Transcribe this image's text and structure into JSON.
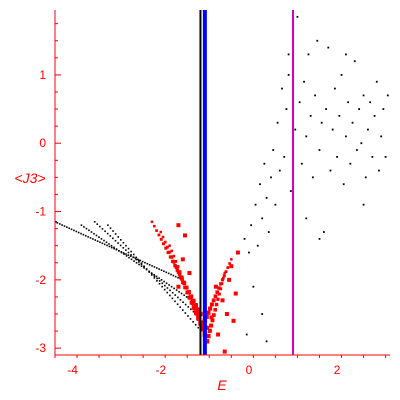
{
  "chart_data": {
    "type": "scatter",
    "title": "",
    "xlabel": "E",
    "ylabel": "<J3>",
    "xlim": [
      -4.4,
      3.2
    ],
    "ylim": [
      -3.1,
      1.95
    ],
    "x_ticks": [
      -4,
      -2,
      0,
      2
    ],
    "y_ticks": [
      1,
      0,
      -1,
      -2,
      -3
    ],
    "grid": false,
    "colors": {
      "axis": "#ff0000",
      "black_points": "#000000",
      "red_points": "#ff0000",
      "blue_line": "#0000ff",
      "magenta_line": "#cc00cc"
    },
    "vertical_lines": [
      {
        "x": -1.1,
        "color": "#000000",
        "width": "thin"
      },
      {
        "x": -1.0,
        "color": "#0000ff",
        "width": "thick"
      },
      {
        "x": 1.0,
        "color": "#cc00cc",
        "width": "thin"
      }
    ],
    "band_series": [
      {
        "x_start": -4.4,
        "x_end": -1.5,
        "y_start": -1.15,
        "y_end": -2.0,
        "color": "#000000",
        "n": 55
      },
      {
        "x_start": -3.8,
        "x_end": -1.3,
        "y_start": -1.2,
        "y_end": -2.3,
        "color": "#000000",
        "n": 45
      },
      {
        "x_start": -3.5,
        "x_end": -1.2,
        "y_start": -1.15,
        "y_end": -2.5,
        "color": "#000000",
        "n": 40
      },
      {
        "x_start": -3.2,
        "x_end": -1.15,
        "y_start": -1.2,
        "y_end": -2.7,
        "color": "#000000",
        "n": 36
      },
      {
        "x_start": -2.2,
        "x_end": -1.1,
        "y_start": -1.15,
        "y_end": -2.5,
        "color": "#ff0000",
        "n": 22
      },
      {
        "x_start": -2.0,
        "x_end": -1.05,
        "y_start": -1.3,
        "y_end": -2.7,
        "color": "#ff0000",
        "n": 20
      },
      {
        "x_start": -1.8,
        "x_end": -1.0,
        "y_start": -1.5,
        "y_end": -2.8,
        "color": "#ff0000",
        "n": 18
      },
      {
        "x_start": -0.4,
        "x_end": -1.0,
        "y_start": -1.7,
        "y_end": -2.6,
        "color": "#ff0000",
        "n": 16
      },
      {
        "x_start": -0.55,
        "x_end": -0.95,
        "y_start": -1.9,
        "y_end": -2.9,
        "color": "#ff0000",
        "n": 14
      }
    ],
    "points": [
      {
        "x": -0.3,
        "y": -2.2,
        "c": "r"
      },
      {
        "x": -0.45,
        "y": -2.0,
        "c": "r"
      },
      {
        "x": -0.6,
        "y": -2.3,
        "c": "r"
      },
      {
        "x": -0.75,
        "y": -2.1,
        "c": "r"
      },
      {
        "x": -0.5,
        "y": -2.5,
        "c": "r"
      },
      {
        "x": -0.35,
        "y": -2.6,
        "c": "r"
      },
      {
        "x": -0.7,
        "y": -2.8,
        "c": "r"
      },
      {
        "x": -0.55,
        "y": -3.05,
        "c": "r"
      },
      {
        "x": -0.25,
        "y": -1.6,
        "c": "r"
      },
      {
        "x": -0.4,
        "y": -1.8,
        "c": "r"
      },
      {
        "x": -1.6,
        "y": -1.2,
        "c": "r"
      },
      {
        "x": -1.45,
        "y": -1.35,
        "c": "r"
      },
      {
        "x": -1.5,
        "y": -1.7,
        "c": "r"
      },
      {
        "x": -1.35,
        "y": -1.9,
        "c": "r"
      },
      {
        "x": -1.6,
        "y": -2.1,
        "c": "r"
      },
      {
        "x": -1.25,
        "y": -2.4,
        "c": "r"
      },
      {
        "x": -0.85,
        "y": -2.55,
        "c": "r"
      },
      {
        "x": -0.95,
        "y": -2.7,
        "c": "r"
      },
      {
        "x": -0.1,
        "y": -1.4,
        "c": "k"
      },
      {
        "x": 0.0,
        "y": -1.6,
        "c": "k"
      },
      {
        "x": 0.05,
        "y": -1.2,
        "c": "k"
      },
      {
        "x": 0.15,
        "y": -0.9,
        "c": "k"
      },
      {
        "x": 0.2,
        "y": -1.5,
        "c": "k"
      },
      {
        "x": 0.25,
        "y": -0.6,
        "c": "k"
      },
      {
        "x": 0.3,
        "y": -1.1,
        "c": "k"
      },
      {
        "x": 0.35,
        "y": -0.3,
        "c": "k"
      },
      {
        "x": 0.4,
        "y": -0.8,
        "c": "k"
      },
      {
        "x": 0.45,
        "y": -1.3,
        "c": "k"
      },
      {
        "x": 0.5,
        "y": -0.5,
        "c": "k"
      },
      {
        "x": 0.55,
        "y": -0.1,
        "c": "k"
      },
      {
        "x": 0.6,
        "y": -0.9,
        "c": "k"
      },
      {
        "x": 0.65,
        "y": 0.3,
        "c": "k"
      },
      {
        "x": 0.7,
        "y": -0.4,
        "c": "k"
      },
      {
        "x": 0.75,
        "y": 0.8,
        "c": "k"
      },
      {
        "x": 0.8,
        "y": -0.2,
        "c": "k"
      },
      {
        "x": 0.85,
        "y": 0.5,
        "c": "k"
      },
      {
        "x": 0.9,
        "y": 1.0,
        "c": "k"
      },
      {
        "x": 0.95,
        "y": -0.7,
        "c": "k"
      },
      {
        "x": 1.05,
        "y": 0.2,
        "c": "k"
      },
      {
        "x": 1.1,
        "y": 1.85,
        "c": "k"
      },
      {
        "x": 1.15,
        "y": 0.6,
        "c": "k"
      },
      {
        "x": 1.2,
        "y": -0.3,
        "c": "k"
      },
      {
        "x": 1.25,
        "y": 0.9,
        "c": "k"
      },
      {
        "x": 1.3,
        "y": 0.1,
        "c": "k"
      },
      {
        "x": 1.35,
        "y": 1.3,
        "c": "k"
      },
      {
        "x": 1.4,
        "y": 0.4,
        "c": "k"
      },
      {
        "x": 1.45,
        "y": -0.5,
        "c": "k"
      },
      {
        "x": 1.5,
        "y": 0.7,
        "c": "k"
      },
      {
        "x": 1.55,
        "y": 1.5,
        "c": "k"
      },
      {
        "x": 1.6,
        "y": -0.1,
        "c": "k"
      },
      {
        "x": 1.65,
        "y": 0.3,
        "c": "k"
      },
      {
        "x": 1.7,
        "y": -1.3,
        "c": "k"
      },
      {
        "x": 1.75,
        "y": 0.5,
        "c": "k"
      },
      {
        "x": 1.8,
        "y": 1.4,
        "c": "k"
      },
      {
        "x": 1.85,
        "y": -0.4,
        "c": "k"
      },
      {
        "x": 1.9,
        "y": 0.2,
        "c": "k"
      },
      {
        "x": 1.95,
        "y": 0.8,
        "c": "k"
      },
      {
        "x": 2.0,
        "y": -0.2,
        "c": "k"
      },
      {
        "x": 2.05,
        "y": 0.4,
        "c": "k"
      },
      {
        "x": 2.1,
        "y": 1.0,
        "c": "k"
      },
      {
        "x": 2.15,
        "y": -0.6,
        "c": "k"
      },
      {
        "x": 2.2,
        "y": 0.1,
        "c": "k"
      },
      {
        "x": 2.25,
        "y": 0.6,
        "c": "k"
      },
      {
        "x": 2.3,
        "y": -0.3,
        "c": "k"
      },
      {
        "x": 2.35,
        "y": 0.3,
        "c": "k"
      },
      {
        "x": 2.4,
        "y": 1.2,
        "c": "k"
      },
      {
        "x": 2.45,
        "y": -0.1,
        "c": "k"
      },
      {
        "x": 2.5,
        "y": 0.5,
        "c": "k"
      },
      {
        "x": 2.55,
        "y": 0.0,
        "c": "k"
      },
      {
        "x": 2.6,
        "y": 0.7,
        "c": "k"
      },
      {
        "x": 2.65,
        "y": -0.5,
        "c": "k"
      },
      {
        "x": 2.7,
        "y": 0.2,
        "c": "k"
      },
      {
        "x": 2.75,
        "y": 0.6,
        "c": "k"
      },
      {
        "x": 2.8,
        "y": -0.2,
        "c": "k"
      },
      {
        "x": 2.85,
        "y": 0.4,
        "c": "k"
      },
      {
        "x": 2.9,
        "y": 0.9,
        "c": "k"
      },
      {
        "x": 2.95,
        "y": -0.4,
        "c": "k"
      },
      {
        "x": 3.0,
        "y": 0.1,
        "c": "k"
      },
      {
        "x": 3.05,
        "y": 0.5,
        "c": "k"
      },
      {
        "x": 3.1,
        "y": -0.2,
        "c": "k"
      },
      {
        "x": 3.15,
        "y": 0.7,
        "c": "k"
      },
      {
        "x": 0.1,
        "y": -2.1,
        "c": "k"
      },
      {
        "x": 0.3,
        "y": -2.5,
        "c": "k"
      },
      {
        "x": -0.05,
        "y": -2.8,
        "c": "k"
      },
      {
        "x": 0.4,
        "y": -2.9,
        "c": "k"
      },
      {
        "x": 1.6,
        "y": -1.4,
        "c": "k"
      },
      {
        "x": 2.2,
        "y": 1.3,
        "c": "k"
      },
      {
        "x": 1.0,
        "y": 1.9,
        "c": "k"
      },
      {
        "x": 0.9,
        "y": 1.3,
        "c": "k"
      },
      {
        "x": 1.3,
        "y": -1.1,
        "c": "k"
      },
      {
        "x": 2.6,
        "y": -0.9,
        "c": "k"
      }
    ]
  }
}
